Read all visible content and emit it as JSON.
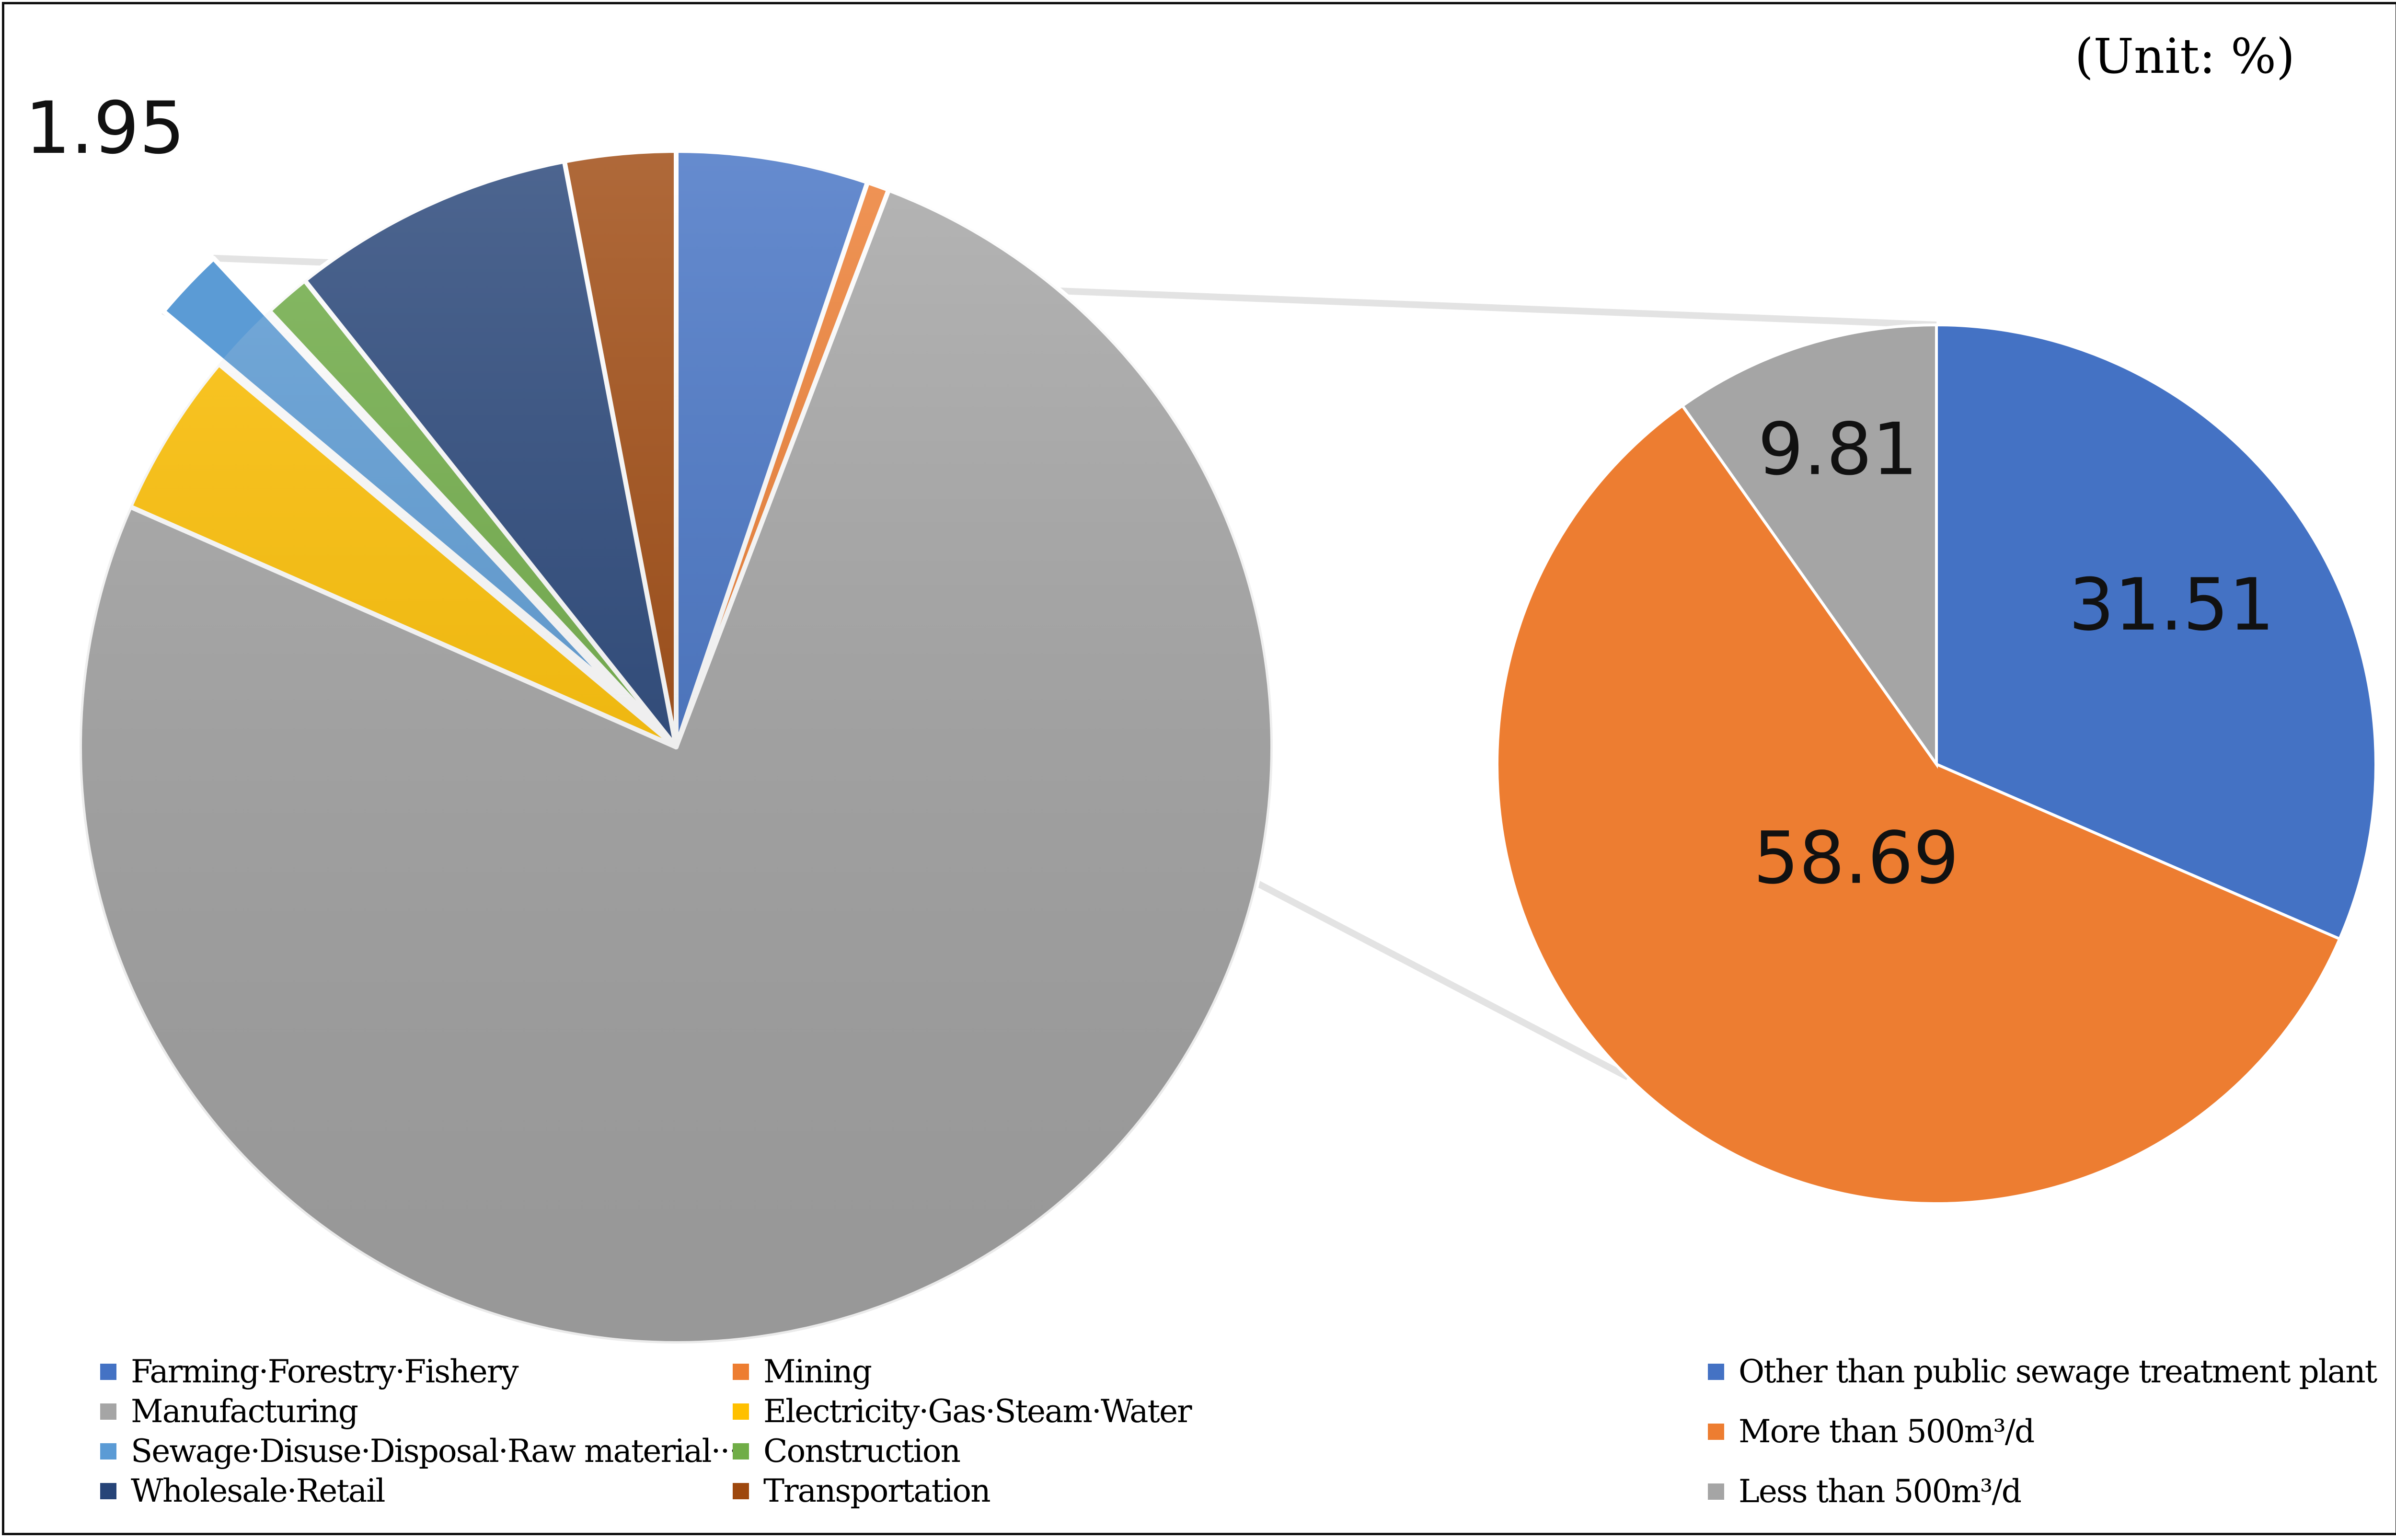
{
  "unit_label": "(Unit: %)",
  "colors": {
    "farming": "#4472C4",
    "mining": "#ED7D31",
    "manufacturing": "#A5A5A5",
    "electricity": "#FFC000",
    "sewage": "#5B9BD5",
    "construction": "#70AD47",
    "wholesale": "#264478",
    "transportation": "#9E480E",
    "connector": "#E3E3E3"
  },
  "chart_data": [
    {
      "type": "pie",
      "title": "",
      "exploded_slice": "Sewage·Disuse·Disposal·Raw material···",
      "slices": [
        {
          "label": "Farming·Forestry·Fishery",
          "value": 5.2,
          "color_key": "farming"
        },
        {
          "label": "Mining",
          "value": 0.6,
          "color_key": "mining"
        },
        {
          "label": "Manufacturing",
          "value": 75.8,
          "color_key": "manufacturing"
        },
        {
          "label": "Electricity·Gas·Steam·Water",
          "value": 4.5,
          "color_key": "electricity"
        },
        {
          "label": "Sewage·Disuse·Disposal·Raw material···",
          "value": 1.95,
          "color_key": "sewage",
          "data_label": "1.95"
        },
        {
          "label": "Construction",
          "value": 1.25,
          "color_key": "construction"
        },
        {
          "label": "Wholesale·Retail",
          "value": 7.7,
          "color_key": "wholesale"
        },
        {
          "label": "Transportation",
          "value": 3.0,
          "color_key": "transportation"
        }
      ],
      "legend": [
        "Farming·Forestry·Fishery",
        "Mining",
        "Manufacturing",
        "Electricity·Gas·Steam·Water",
        "Sewage·Disuse·Disposal·Raw material···",
        "Construction",
        "Wholesale·Retail",
        "Transportation"
      ],
      "legend_placement": "bottom"
    },
    {
      "type": "pie",
      "title": "",
      "slices": [
        {
          "label": "Other than public sewage treatment plant",
          "value": 31.51,
          "color": "#4472C4",
          "data_label": "31.51"
        },
        {
          "label": "More than 500m³/d",
          "value": 58.69,
          "color": "#ED7D31",
          "data_label": "58.69"
        },
        {
          "label": "Less than 500m³/d",
          "value": 9.81,
          "color": "#A5A5A5",
          "data_label": "9.81"
        }
      ],
      "legend": [
        "Other than public sewage treatment plant",
        "More than 500m³/d",
        "Less than 500m³/d"
      ],
      "legend_placement": "bottom-right"
    }
  ]
}
